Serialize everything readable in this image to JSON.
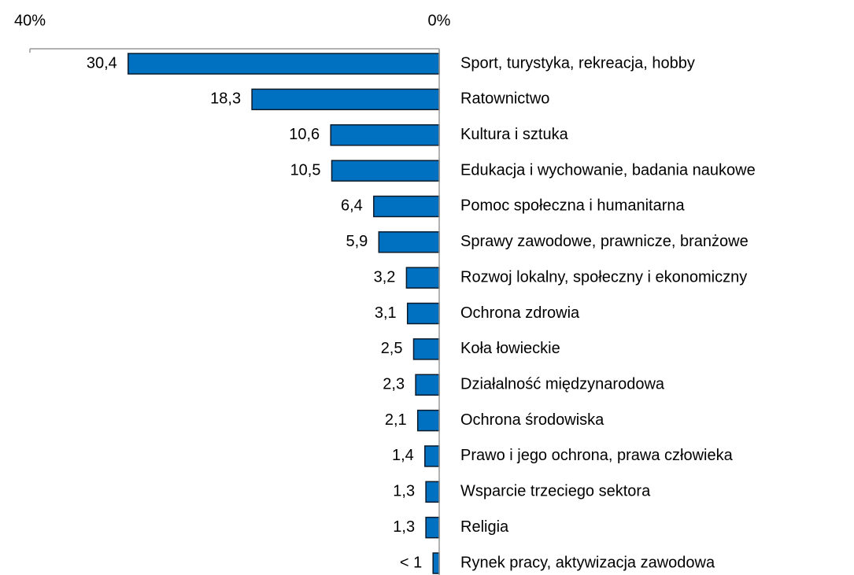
{
  "chart_data": {
    "type": "hbar",
    "categories": [
      "Sport, turystyka, rekreacja, hobby",
      "Ratownictwo",
      "Kultura i sztuka",
      "Edukacja i wychowanie, badania naukowe",
      "Pomoc społeczna i humanitarna",
      "Sprawy zawodowe, prawnicze, branżowe",
      "Rozwoj lokalny, społeczny i ekonomiczny",
      "Ochrona zdrowia",
      "Koła łowieckie",
      "Działalność międzynarodowa",
      "Ochrona środowiska",
      "Prawo i jego ochrona, prawa człowieka",
      "Wsparcie trzeciego sektora",
      "Religia",
      "Rynek pracy, aktywizacja zawodowa"
    ],
    "values": [
      30.4,
      18.3,
      10.6,
      10.5,
      6.4,
      5.9,
      3.2,
      3.1,
      2.5,
      2.3,
      2.1,
      1.4,
      1.3,
      1.3,
      0.6
    ],
    "value_labels": [
      "30,4",
      "18,3",
      "10,6",
      "10,5",
      "6,4",
      "5,9",
      "3,2",
      "3,1",
      "2,5",
      "2,3",
      "2,1",
      "1,4",
      "1,3",
      "1,3",
      "< 1"
    ],
    "color": "#0070c0",
    "xlim": [
      40,
      0
    ],
    "xticks": [
      {
        "value": 40,
        "label": "40%"
      },
      {
        "value": 0,
        "label": "0%"
      }
    ]
  }
}
